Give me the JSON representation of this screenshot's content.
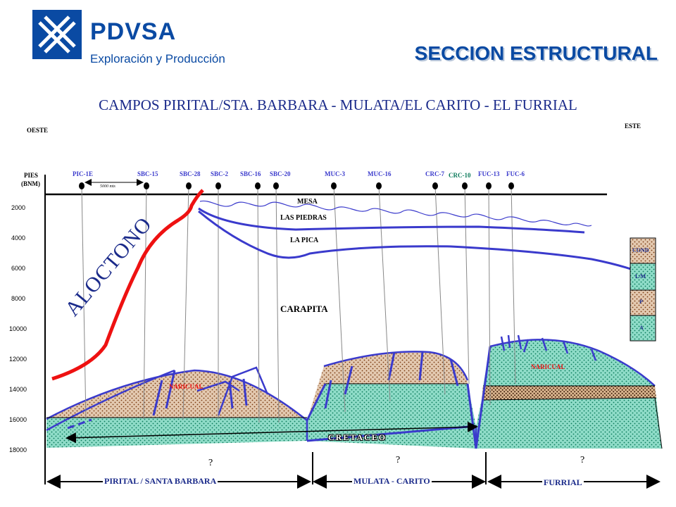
{
  "header": {
    "brand": "PDVSA",
    "brand_sub": "Exploración y Producción",
    "title": "SECCION ESTRUCTURAL",
    "logo_icon": "pdvsa-logo-icon",
    "brand_color": "#0a4aa3"
  },
  "section": {
    "subtitle": "CAMPOS  PIRITAL/STA. BARBARA - MULATA/EL CARITO - EL FURRIAL",
    "west": "OESTE",
    "east": "ESTE",
    "axis_title_1": "PIES",
    "axis_title_2": "(BNM)",
    "depths": [
      "2000",
      "4000",
      "6000",
      "8000",
      "10000",
      "12000",
      "14000",
      "16000",
      "18000"
    ],
    "scale_label": "5000 mts"
  },
  "wells": [
    {
      "name": "PIC-1E"
    },
    {
      "name": "SBC-15"
    },
    {
      "name": "SBC-28"
    },
    {
      "name": "SBC-2"
    },
    {
      "name": "SBC-16"
    },
    {
      "name": "SBC-20"
    },
    {
      "name": "MUC-3"
    },
    {
      "name": "MUC-16"
    },
    {
      "name": "CRC-7"
    },
    {
      "name": "CRC-10"
    },
    {
      "name": "FUC-13"
    },
    {
      "name": "FUC-6"
    }
  ],
  "formations": {
    "mesa": "MESA",
    "las_piedras": "LAS PIEDRAS",
    "la_pica": "LA PICA",
    "carapita": "CARAPITA",
    "aloctono": "ALOCTONO",
    "naricual_1": "NARICUAL",
    "naricual_2": "NARICUAL",
    "cretaceo": "CRETACEO"
  },
  "legend": [
    "COND",
    "L/M",
    "P",
    "A"
  ],
  "unknowns": [
    "?",
    "?",
    "?"
  ],
  "areas": {
    "pirital": "PIRITAL / SANTA BARBARA",
    "mulata": "MULATA - CARITO",
    "furrial": "FURRIAL"
  },
  "colors": {
    "naricual_fill": "#e3c9b0",
    "cretaceo_fill": "#8fdcc8",
    "line_blue": "#3a3acc",
    "fault_red": "#ee1111",
    "dot_brown": "#7a3a10",
    "dot_green": "#0a7a5a"
  }
}
